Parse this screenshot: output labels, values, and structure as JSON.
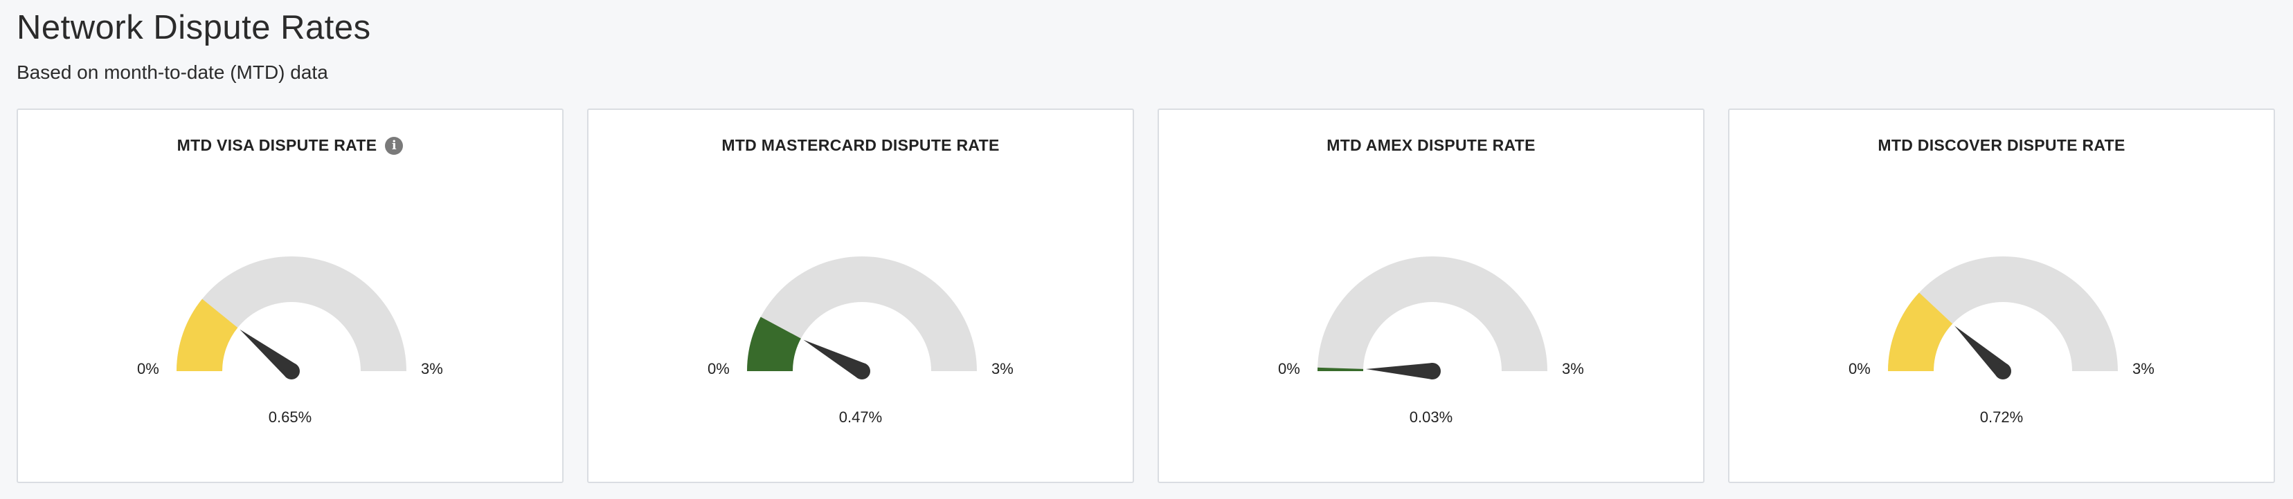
{
  "header": {
    "title": "Network Dispute Rates",
    "subtitle": "Based on month-to-date (MTD) data"
  },
  "gauges": [
    {
      "title": "MTD VISA DISPUTE RATE",
      "has_info": true,
      "min_label": "0%",
      "max_label": "3%",
      "value_label": "0.65%",
      "value": 0.65,
      "max": 3,
      "fill_color": "#f5d24b"
    },
    {
      "title": "MTD MASTERCARD DISPUTE RATE",
      "has_info": false,
      "min_label": "0%",
      "max_label": "3%",
      "value_label": "0.47%",
      "value": 0.47,
      "max": 3,
      "fill_color": "#386b2b"
    },
    {
      "title": "MTD AMEX DISPUTE RATE",
      "has_info": false,
      "min_label": "0%",
      "max_label": "3%",
      "value_label": "0.03%",
      "value": 0.03,
      "max": 3,
      "fill_color": "#386b2b"
    },
    {
      "title": "MTD DISCOVER DISPUTE RATE",
      "has_info": false,
      "min_label": "0%",
      "max_label": "3%",
      "value_label": "0.72%",
      "value": 0.72,
      "max": 3,
      "fill_color": "#f5d24b"
    }
  ],
  "colors": {
    "track": "#e0e0e0",
    "needle": "#333333",
    "info_icon": "#7a7a7a"
  },
  "info_icon_name": "info-icon",
  "info_icon_glyph": "i"
}
